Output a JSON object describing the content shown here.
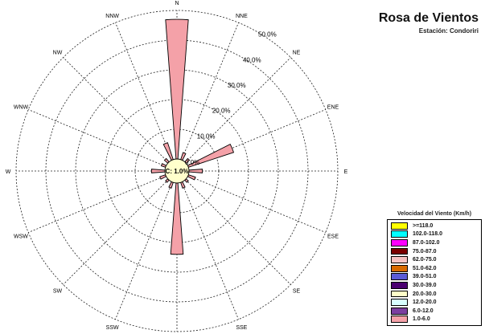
{
  "chart_data": {
    "type": "wind-rose",
    "title": "Rosa de Vientos",
    "subtitle": "Estación: Condoriri",
    "directions": [
      "N",
      "NNE",
      "NE",
      "ENE",
      "E",
      "ESE",
      "SE",
      "SSE",
      "S",
      "SSW",
      "SW",
      "WSW",
      "W",
      "WNW",
      "NW",
      "NNW"
    ],
    "frequencies": [
      47.0,
      2.5,
      1.5,
      16.0,
      4.5,
      2.5,
      1.0,
      2.0,
      24.0,
      2.0,
      1.0,
      2.0,
      4.5,
      1.5,
      1.5,
      6.0
    ],
    "rlim": [
      0,
      50
    ],
    "ring_values": [
      10,
      20,
      30,
      40,
      50
    ],
    "ring_labels": [
      "10.0%",
      "20.0%",
      "30.0%",
      "40.0%",
      "50.0%"
    ],
    "calm_label": "C: 1.0%",
    "inner_label": "0.0%",
    "calm_color": "#ffffcc",
    "petal_color": "#f4a1a8",
    "grid": true,
    "legend": {
      "title": "Velocidad del Viento (Km/h)",
      "placement": "bottom-right",
      "items": [
        {
          "label": ">=118.0",
          "color": "#ffff00"
        },
        {
          "label": "102.0-118.0",
          "color": "#00ffff"
        },
        {
          "label": "87.0-102.0",
          "color": "#ff00ff"
        },
        {
          "label": "75.0-87.0",
          "color": "#7a0000"
        },
        {
          "label": "62.0-75.0",
          "color": "#f7c3c3"
        },
        {
          "label": "51.0-62.0",
          "color": "#d76a00"
        },
        {
          "label": "39.0-51.0",
          "color": "#5b5bd6"
        },
        {
          "label": "30.0-39.0",
          "color": "#4b0070"
        },
        {
          "label": "20.0-30.0",
          "color": "#ffffc8"
        },
        {
          "label": "12.0-20.0",
          "color": "#d8ffff"
        },
        {
          "label": "6.0-12.0",
          "color": "#7b3fa0"
        },
        {
          "label": "1.0-6.0",
          "color": "#f4a1a8"
        }
      ]
    }
  }
}
